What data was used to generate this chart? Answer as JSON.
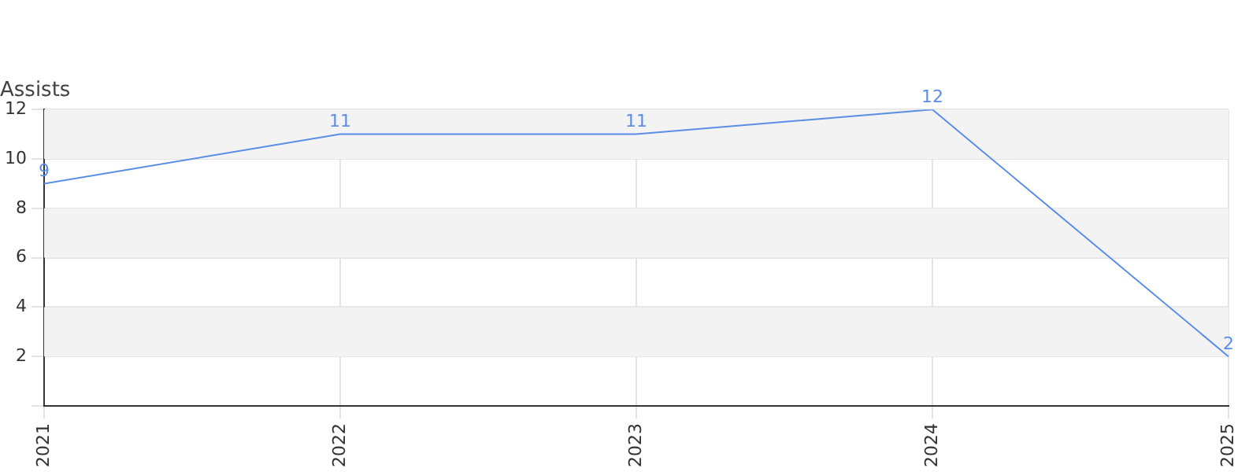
{
  "chart_data": {
    "type": "line",
    "title": "Assists",
    "categories": [
      "2021",
      "2022",
      "2023",
      "2024",
      "2025"
    ],
    "series": [
      {
        "color": "#5b8ee6",
        "values": [
          9,
          11,
          11,
          12,
          2
        ]
      }
    ],
    "ylim": [
      0,
      12
    ],
    "yticks": [
      {
        "value": 0,
        "label": null
      },
      2,
      4,
      6,
      8,
      10,
      12
    ],
    "grid": true,
    "legend": false,
    "marker": "none",
    "line_style": "solid",
    "data_labels": true
  }
}
